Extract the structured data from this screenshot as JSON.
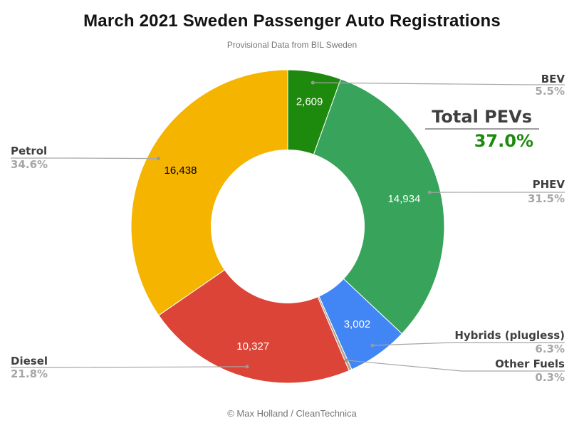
{
  "header": {
    "title": "March 2021 Sweden Passenger Auto Registrations",
    "subtitle": "Provisional Data from BIL Sweden"
  },
  "footer": {
    "credit": "© Max Holland / CleanTechnica"
  },
  "total": {
    "label": "Total PEVs",
    "value": "37.0%",
    "value_color": "#1e8a0d"
  },
  "colors": {
    "label_name": "#3f3f3f",
    "label_pct": "#a6a6a6",
    "leader_line": "#a6a6a6",
    "leader_dot": "#999999",
    "background": "#ffffff"
  },
  "chart_data": {
    "type": "pie",
    "variant": "donut",
    "donut_hole_ratio": 0.5,
    "start": "12-o-clock-clockwise",
    "legend_position": "labeled-callouts",
    "title": "March 2021 Sweden Passenger Auto Registrations",
    "subtitle": "Provisional Data from BIL Sweden",
    "annotations": {
      "total_label": "Total PEVs",
      "total_value": "37.0%"
    },
    "slices": [
      {
        "label": "BEV",
        "value": 2609,
        "value_label": "2,609",
        "pct": 5.5,
        "pct_label": "5.5%",
        "color": "#1e8a0d",
        "value_text_color": "#ffffff"
      },
      {
        "label": "PHEV",
        "value": 14934,
        "value_label": "14,934",
        "pct": 31.5,
        "pct_label": "31.5%",
        "color": "#38a35b",
        "value_text_color": "#ffffff"
      },
      {
        "label": "Hybrids (plugless)",
        "value": 3002,
        "value_label": "3,002",
        "pct": 6.3,
        "pct_label": "6.3%",
        "color": "#4285f4",
        "value_text_color": "#ffffff"
      },
      {
        "label": "Other Fuels",
        "value": null,
        "value_label": null,
        "pct": 0.3,
        "pct_label": "0.3%",
        "color": "#b3a28c",
        "value_text_color": null
      },
      {
        "label": "Diesel",
        "value": 10327,
        "value_label": "10,327",
        "pct": 21.8,
        "pct_label": "21.8%",
        "color": "#db4437",
        "value_text_color": "#ffffff"
      },
      {
        "label": "Petrol",
        "value": 16438,
        "value_label": "16,438",
        "pct": 34.6,
        "pct_label": "34.6%",
        "color": "#f4b400",
        "value_text_color": "#000000"
      }
    ]
  }
}
